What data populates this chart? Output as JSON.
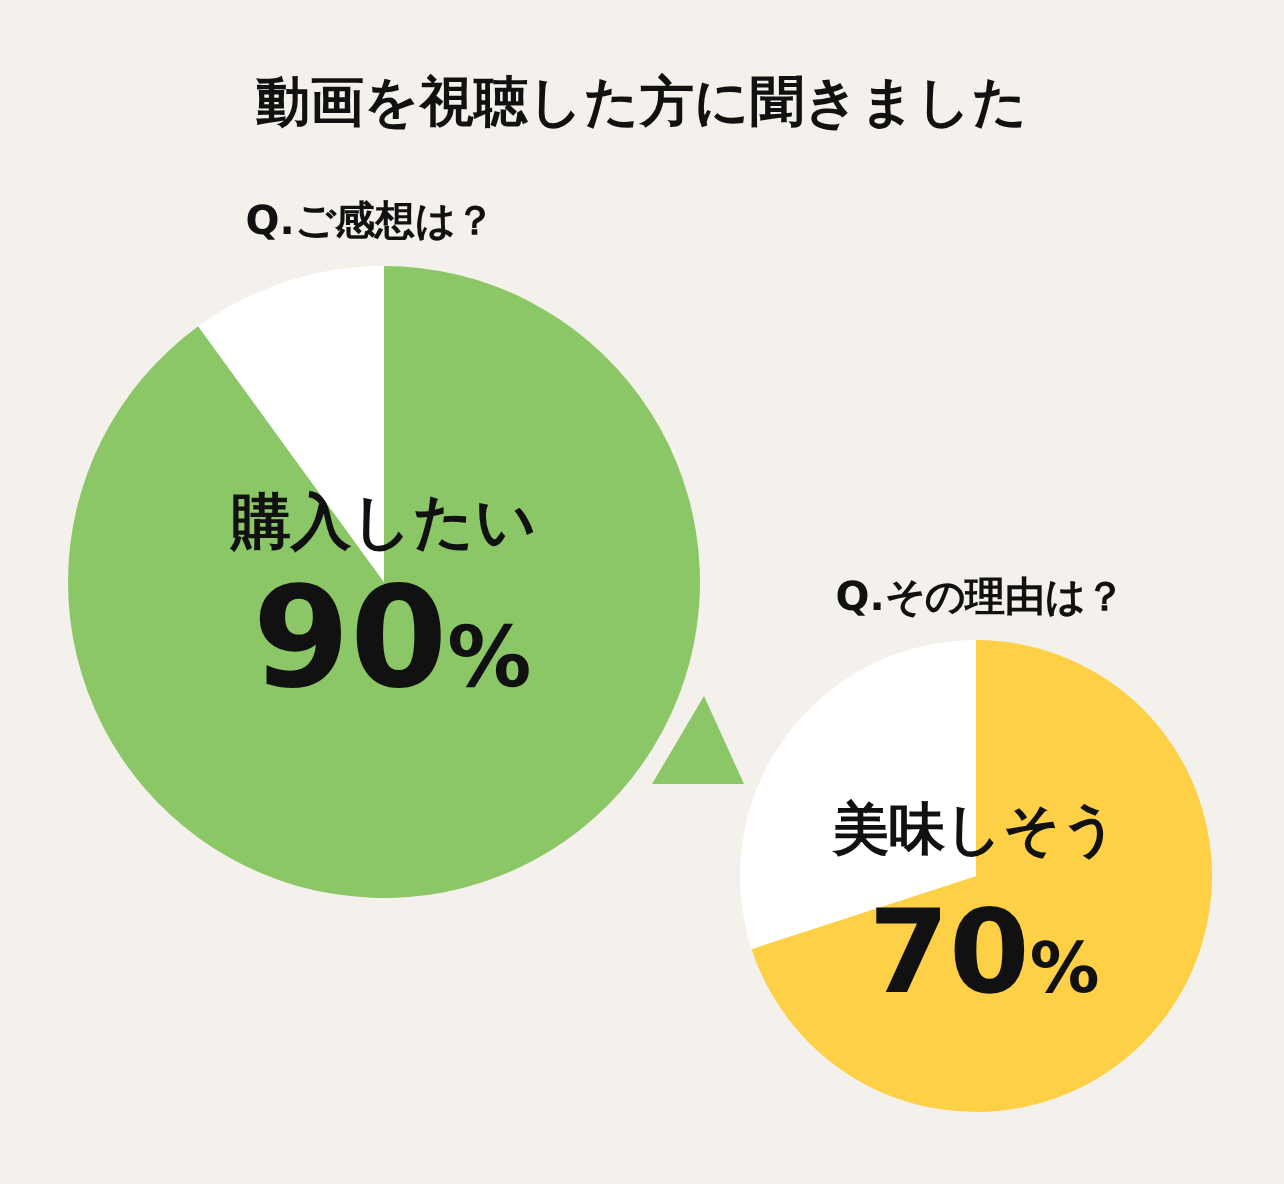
{
  "chart_data": [
    {
      "type": "pie",
      "title": "動画を視聴した方に聞きました",
      "subtitle": "Q.ご感想は？",
      "categories": [
        "購入したい",
        null
      ],
      "values": [
        90,
        10
      ],
      "colors": [
        "#8bc766",
        "#ffffff"
      ],
      "value_labels": [
        "90%",
        null
      ]
    },
    {
      "type": "pie",
      "title": "Q.その理由は？",
      "categories": [
        "美味しそう",
        null
      ],
      "values": [
        70,
        30
      ],
      "colors": [
        "#fed046",
        "#ffffff"
      ],
      "value_labels": [
        "70%",
        null
      ]
    }
  ]
}
